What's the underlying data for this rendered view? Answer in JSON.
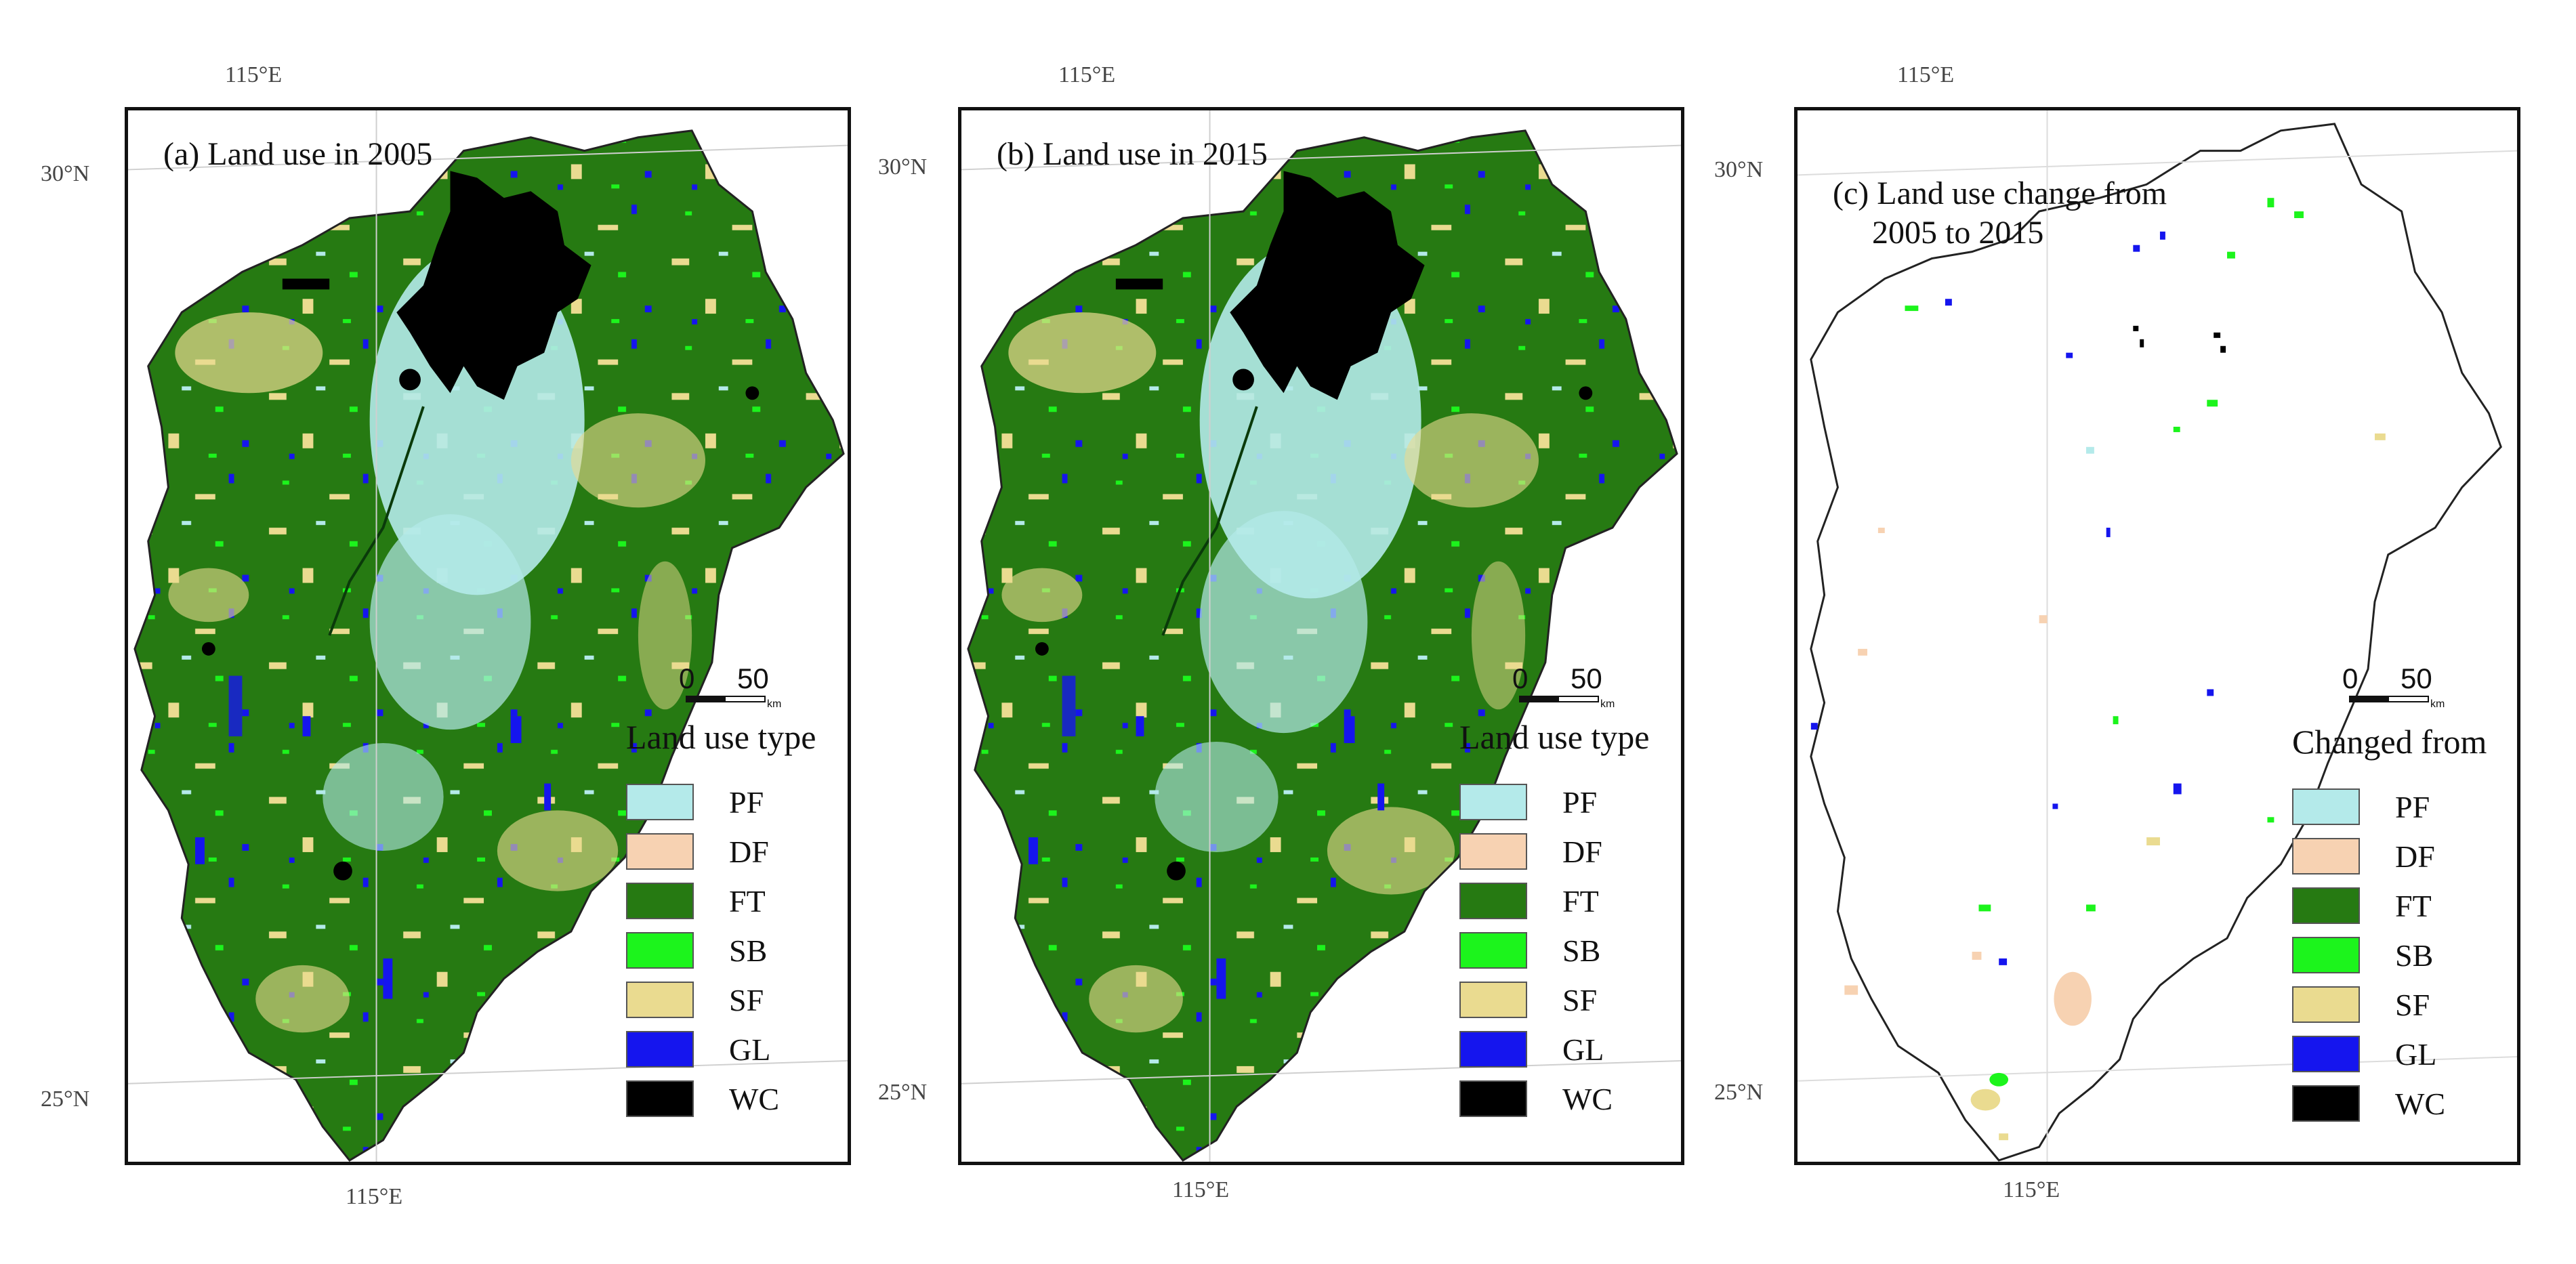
{
  "figure": {
    "panels": [
      {
        "id": "a",
        "title": "(a) Land use in 2005",
        "legend_title": "Land use type",
        "mode": "full"
      },
      {
        "id": "b",
        "title": "(b) Land use in 2015",
        "legend_title": "Land use type",
        "mode": "full"
      },
      {
        "id": "c",
        "title_line1": "(c) Land use change from",
        "title_line2": "2005 to 2015",
        "legend_title": "Changed from",
        "mode": "change"
      }
    ],
    "coordinate_labels": {
      "lon_top": "115°E",
      "lon_bottom": "115°E",
      "lat_upper": "30°N",
      "lat_lower": "25°N"
    },
    "scale_bar": {
      "zero": "0",
      "fifty": "50",
      "unit": "km"
    },
    "legend_items": [
      {
        "code": "PF",
        "color": "#b4eaea"
      },
      {
        "code": "DF",
        "color": "#f7d2b2"
      },
      {
        "code": "FT",
        "color": "#267a12"
      },
      {
        "code": "SB",
        "color": "#1cf41c"
      },
      {
        "code": "SF",
        "color": "#eadb90"
      },
      {
        "code": "GL",
        "color": "#1515ee"
      },
      {
        "code": "WC",
        "color": "#000000"
      }
    ]
  }
}
